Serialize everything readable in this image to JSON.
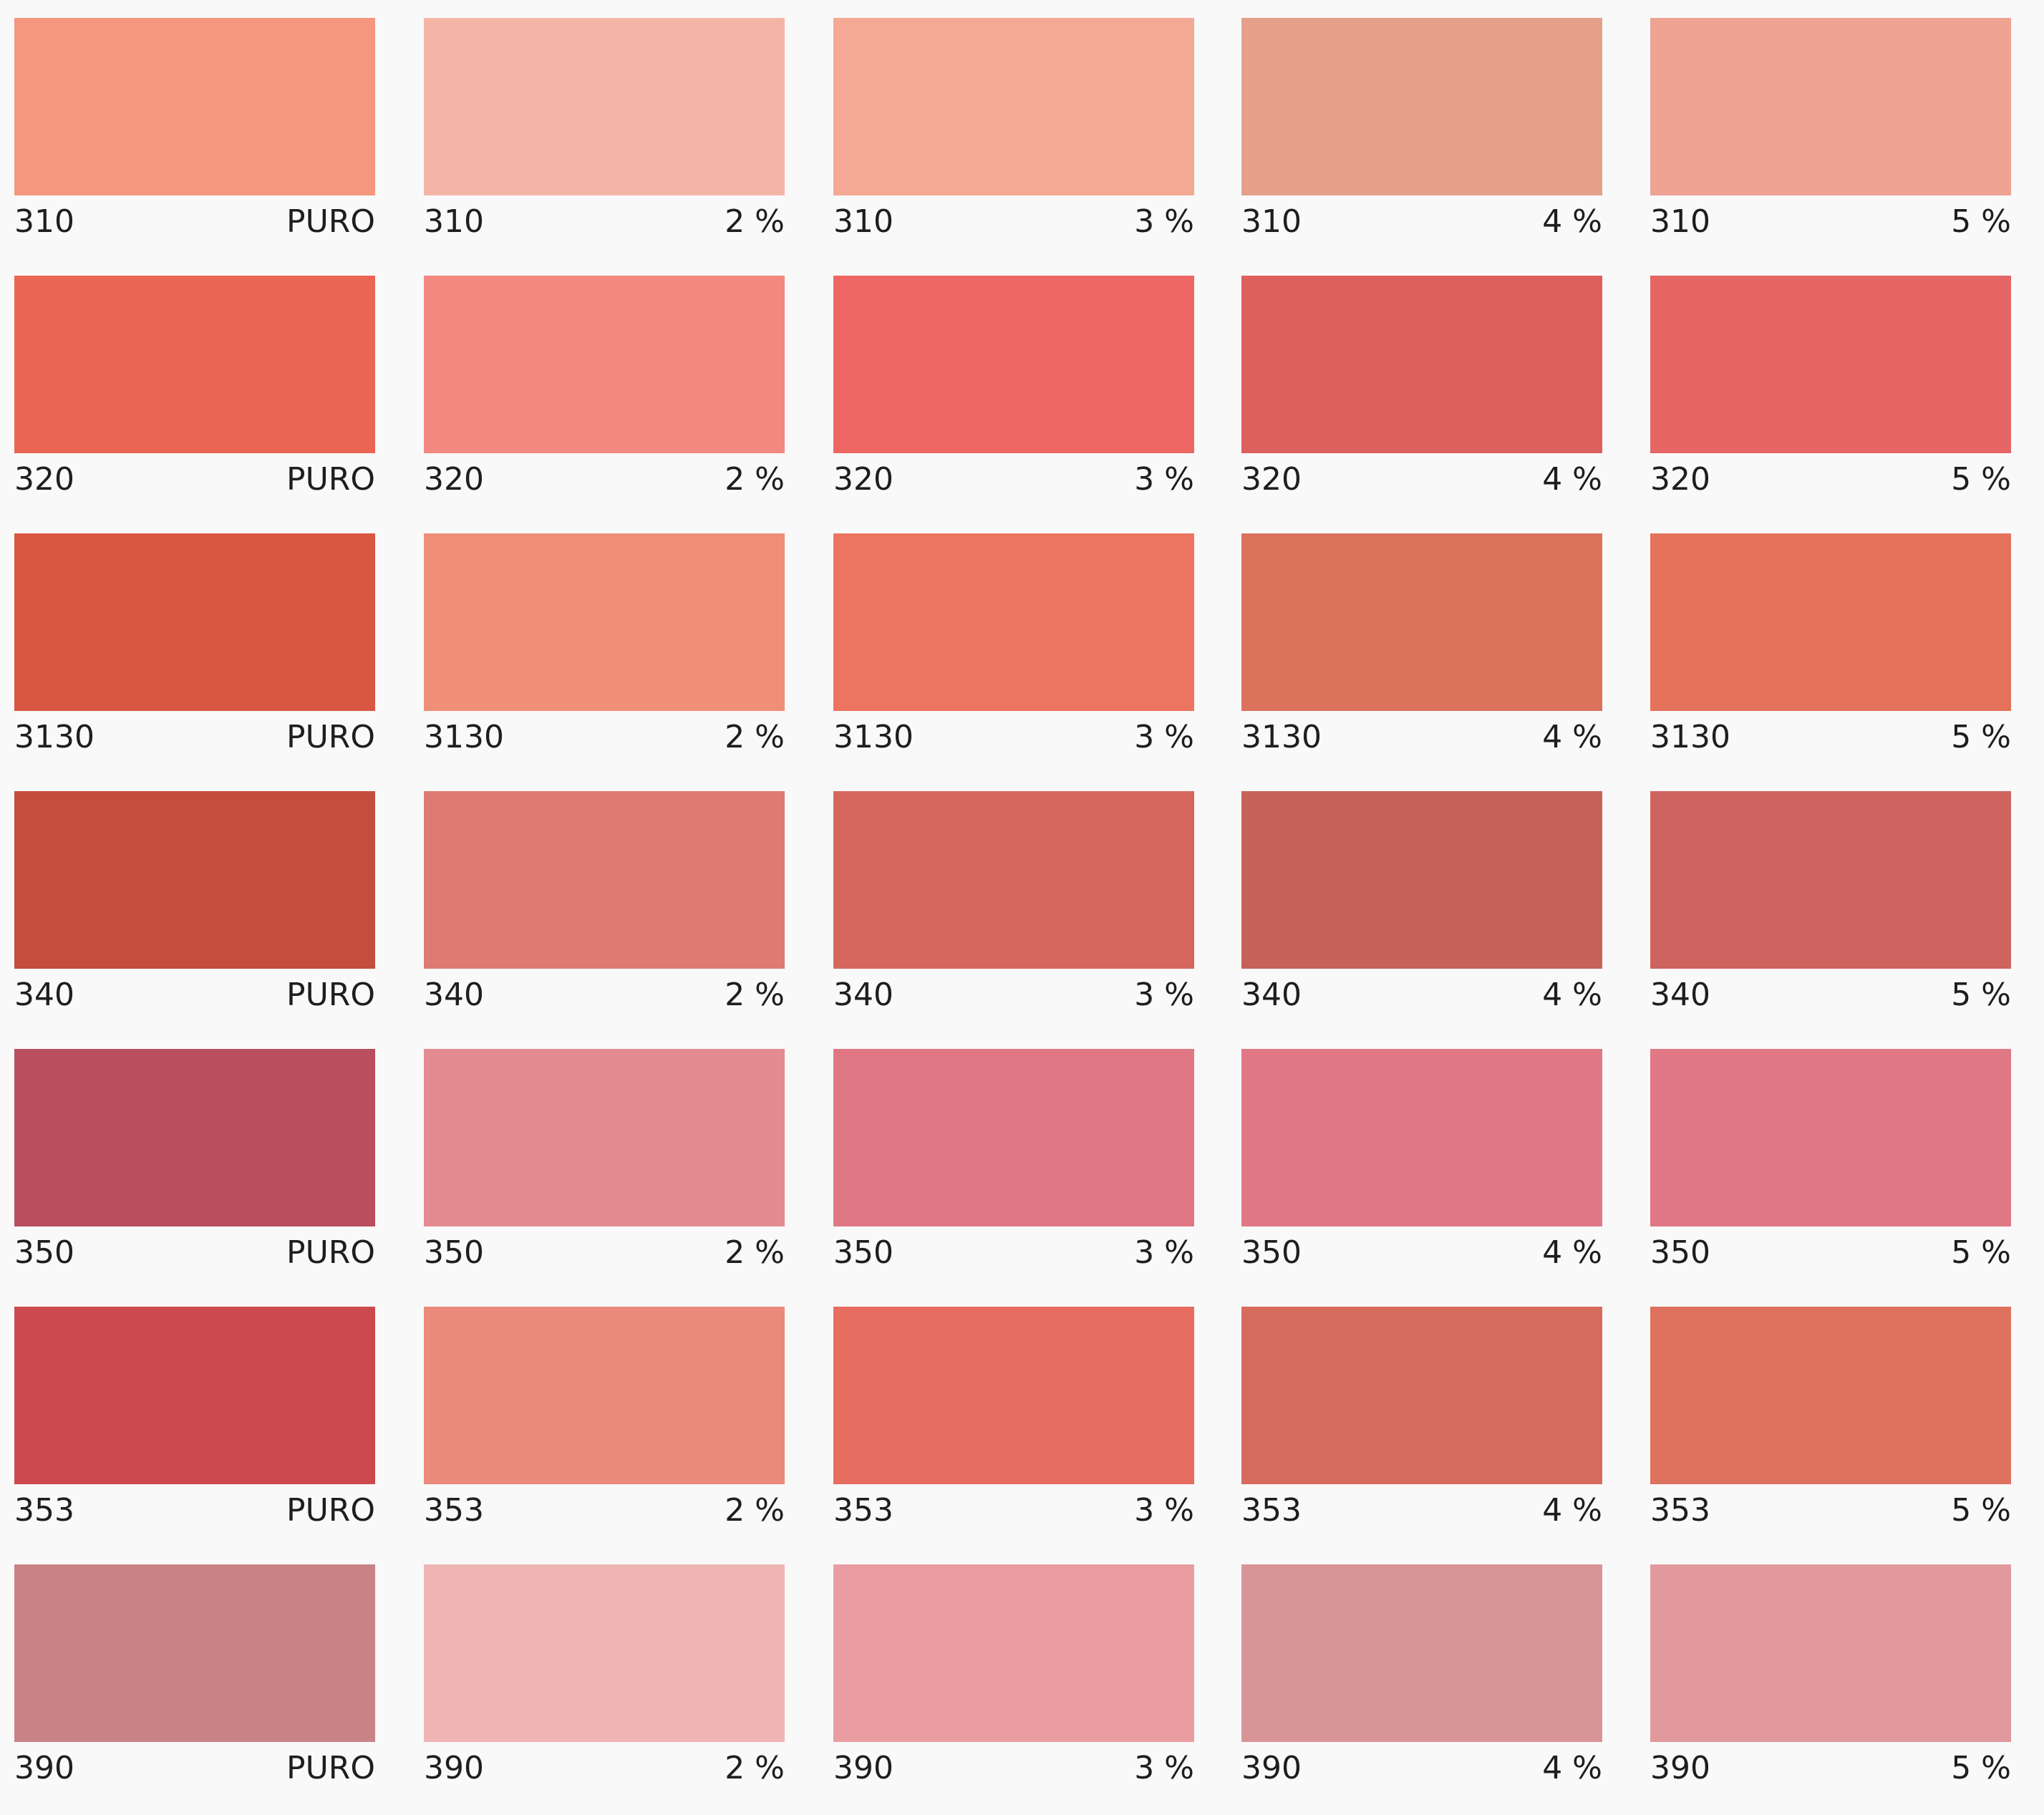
{
  "columns": [
    "PURO",
    "2 %",
    "3 %",
    "4 %",
    "5 %"
  ],
  "rows": [
    {
      "code": "310",
      "colors": [
        "#f5977e",
        "#f5b5a6",
        "#f4a995",
        "#e5a08c",
        "#eea393"
      ]
    },
    {
      "code": "320",
      "colors": [
        "#ea6553",
        "#f28880",
        "#ed6663",
        "#dd605e",
        "#e66565"
      ]
    },
    {
      "code": "3130",
      "colors": [
        "#d95741",
        "#ef8f77",
        "#ec7460",
        "#dc715c",
        "#e5735b"
      ]
    },
    {
      "code": "340",
      "colors": [
        "#c44d3d",
        "#dd7a72",
        "#d5675f",
        "#c5625a",
        "#cf635f"
      ]
    },
    {
      "code": "350",
      "colors": [
        "#b84e5e",
        "#e48a91",
        "#df7884",
        "#e07985",
        "#e07886"
      ]
    },
    {
      "code": "353",
      "colors": [
        "#cc4a4e",
        "#e98a7a",
        "#e66d5f",
        "#d76b5d",
        "#df725f"
      ]
    },
    {
      "code": "390",
      "colors": [
        "#c98386",
        "#efb5b4",
        "#ea9da1",
        "#d99497",
        "#e1999e"
      ]
    }
  ]
}
